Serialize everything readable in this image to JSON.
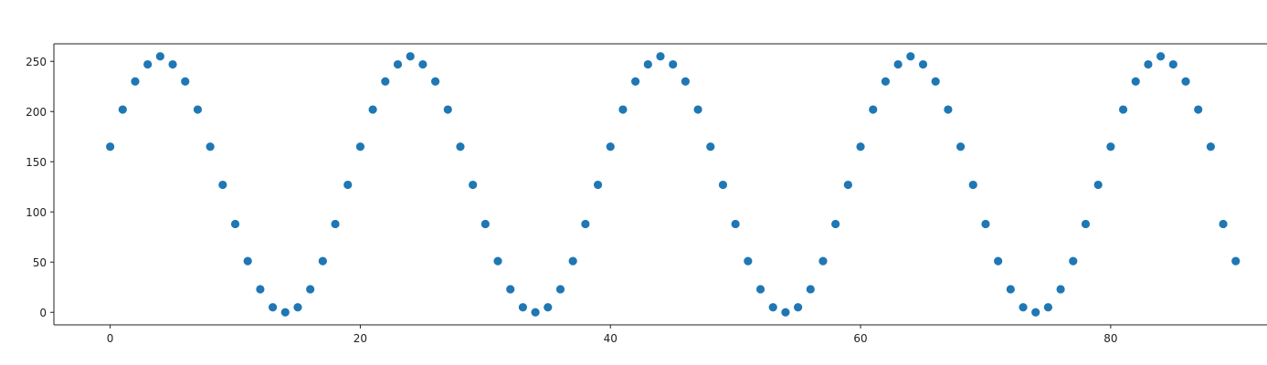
{
  "chart_data": {
    "type": "scatter",
    "title": "",
    "xlabel": "",
    "ylabel": "",
    "xlim": [
      -4.5,
      92.5
    ],
    "ylim": [
      -12.5,
      267.5
    ],
    "x_ticks": [
      0,
      20,
      40,
      60,
      80
    ],
    "y_ticks": [
      0,
      50,
      100,
      150,
      200,
      250
    ],
    "x_tick_labels": [
      "0",
      "20",
      "40",
      "60",
      "80"
    ],
    "y_tick_labels": [
      "0",
      "50",
      "100",
      "150",
      "200",
      "250"
    ],
    "grid": false,
    "legend": "none",
    "series": [
      {
        "color": "#1f77b4",
        "x": [
          0,
          1,
          2,
          3,
          4,
          5,
          6,
          7,
          8,
          9,
          10,
          11,
          12,
          13,
          14,
          15,
          16,
          17,
          18,
          19,
          20,
          21,
          22,
          23,
          24,
          25,
          26,
          27,
          28,
          29,
          30,
          31,
          32,
          33,
          34,
          35,
          36,
          37,
          38,
          39,
          40,
          41,
          42,
          43,
          44,
          45,
          46,
          47,
          48,
          49,
          50,
          51,
          52,
          53,
          54,
          55,
          56,
          57,
          58,
          59,
          60,
          61,
          62,
          63,
          64,
          65,
          66,
          67,
          68,
          69,
          70,
          71,
          72,
          73,
          74,
          75,
          76,
          77,
          78,
          79,
          80,
          81,
          82,
          83,
          84,
          85,
          86,
          87,
          88,
          89,
          90
        ],
        "y": [
          165,
          202,
          230,
          247,
          255,
          247,
          230,
          202,
          165,
          127,
          88,
          51,
          23,
          5,
          0,
          5,
          23,
          51,
          88,
          127,
          165,
          202,
          230,
          247,
          255,
          247,
          230,
          202,
          165,
          127,
          88,
          51,
          23,
          5,
          0,
          5,
          23,
          51,
          88,
          127,
          165,
          202,
          230,
          247,
          255,
          247,
          230,
          202,
          165,
          127,
          88,
          51,
          23,
          5,
          0,
          5,
          23,
          51,
          88,
          127,
          165,
          202,
          230,
          247,
          255,
          247,
          230,
          202,
          165,
          127,
          88,
          51,
          23,
          5,
          0,
          5,
          23,
          51,
          88,
          127,
          165,
          202,
          230,
          247,
          255,
          247,
          230,
          202,
          165,
          88,
          51
        ]
      }
    ]
  }
}
